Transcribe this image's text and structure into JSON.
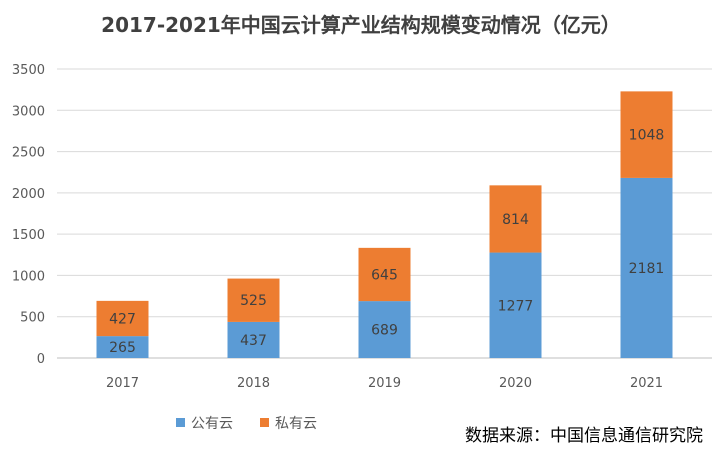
{
  "chart_data": {
    "type": "bar",
    "stacked": true,
    "title": "2017-2021年中国云计算产业结构规模变动情况（亿元）",
    "xlabel": "",
    "ylabel": "",
    "categories": [
      "2017",
      "2018",
      "2019",
      "2020",
      "2021"
    ],
    "series": [
      {
        "name": "公有云",
        "values": [
          265,
          437,
          689,
          1277,
          2181
        ],
        "color": "#5B9BD5"
      },
      {
        "name": "私有云",
        "values": [
          427,
          525,
          645,
          814,
          1048
        ],
        "color": "#ED7D31"
      }
    ],
    "ylim": [
      0,
      3500
    ],
    "yticks": [
      "0",
      "500",
      "1000",
      "1500",
      "2000",
      "2500",
      "3000",
      "3500"
    ],
    "grid": true,
    "legend_position": "bottom-left",
    "source": "数据来源：中国信息通信研究院"
  }
}
